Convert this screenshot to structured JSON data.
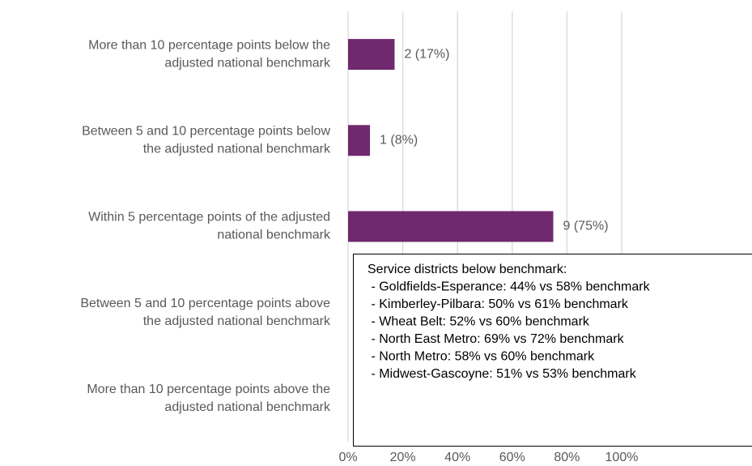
{
  "chart_data": {
    "type": "bar",
    "orientation": "horizontal",
    "categories": [
      [
        "More than 10 percentage points below the",
        "adjusted national benchmark"
      ],
      [
        "Between 5 and 10 percentage points below",
        "the adjusted national benchmark"
      ],
      [
        "Within 5 percentage points of the adjusted",
        "national benchmark"
      ],
      [
        "Between 5 and 10 percentage points above",
        "the adjusted national benchmark"
      ],
      [
        "More than 10 percentage points above the",
        "adjusted national benchmark"
      ]
    ],
    "values": [
      17,
      8,
      75,
      0,
      0
    ],
    "value_labels": [
      "2 (17%)",
      "1 (8%)",
      "9 (75%)",
      null,
      null
    ],
    "color": "#70296f",
    "xlim": [
      0,
      100
    ],
    "xticks": [
      {
        "value": 0,
        "label": "0%"
      },
      {
        "value": 20,
        "label": "20%"
      },
      {
        "value": 40,
        "label": "40%"
      },
      {
        "value": 60,
        "label": "60%"
      },
      {
        "value": 80,
        "label": "80%"
      },
      {
        "value": 100,
        "label": "100%"
      }
    ],
    "grid": true,
    "annotation": [
      "Service districts below benchmark:",
      " - Goldfields-Esperance: 44% vs 58% benchmark",
      " - Kimberley-Pilbara: 50% vs 61% benchmark",
      " - Wheat Belt: 52% vs 60% benchmark",
      " - North East Metro: 69% vs 72% benchmark",
      " - North Metro: 58% vs 60% benchmark",
      " - Midwest-Gascoyne: 51% vs 53% benchmark"
    ]
  }
}
